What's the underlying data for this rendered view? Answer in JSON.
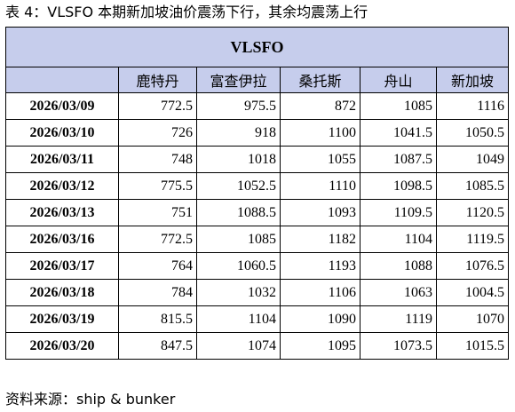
{
  "caption": "表 4：VLSFO 本期新加坡油价震荡下行，其余均震荡上行",
  "table": {
    "title": "VLSFO",
    "columns": [
      "",
      "鹿特丹",
      "富查伊拉",
      "桑托斯",
      "舟山",
      "新加坡"
    ],
    "rows": [
      {
        "date": "2026/03/09",
        "values": [
          "772.5",
          "975.5",
          "872",
          "1085",
          "1116"
        ]
      },
      {
        "date": "2026/03/10",
        "values": [
          "726",
          "918",
          "1100",
          "1041.5",
          "1050.5"
        ]
      },
      {
        "date": "2026/03/11",
        "values": [
          "748",
          "1018",
          "1055",
          "1087.5",
          "1049"
        ]
      },
      {
        "date": "2026/03/12",
        "values": [
          "775.5",
          "1052.5",
          "1110",
          "1098.5",
          "1085.5"
        ]
      },
      {
        "date": "2026/03/13",
        "values": [
          "751",
          "1088.5",
          "1093",
          "1109.5",
          "1120.5"
        ]
      },
      {
        "date": "2026/03/16",
        "values": [
          "772.5",
          "1085",
          "1182",
          "1104",
          "1119.5"
        ]
      },
      {
        "date": "2026/03/17",
        "values": [
          "764",
          "1060.5",
          "1193",
          "1088",
          "1076.5"
        ]
      },
      {
        "date": "2026/03/18",
        "values": [
          "784",
          "1032",
          "1106",
          "1063",
          "1004.5"
        ]
      },
      {
        "date": "2026/03/19",
        "values": [
          "815.5",
          "1104",
          "1090",
          "1119",
          "1070"
        ]
      },
      {
        "date": "2026/03/20",
        "values": [
          "847.5",
          "1074",
          "1095",
          "1073.5",
          "1015.5"
        ]
      }
    ]
  },
  "source": "资料来源：ship & bunker"
}
